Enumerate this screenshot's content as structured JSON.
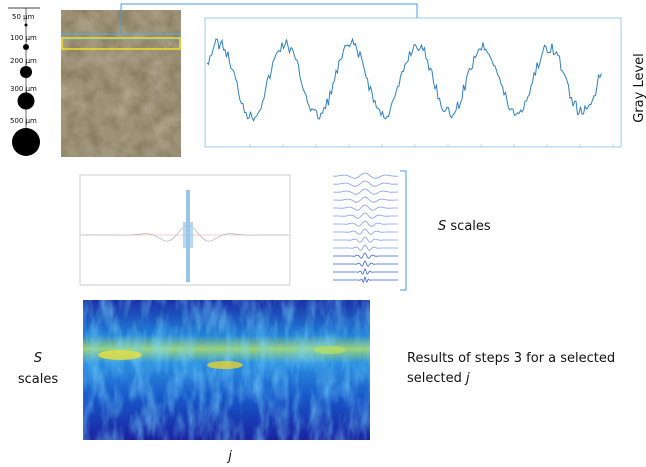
{
  "scale_bar": {
    "labels": [
      "50 µm",
      "100 µm",
      "200 µm",
      "300 µm",
      "500 µm"
    ]
  },
  "signal_plot": {
    "y_label": "Gray Level"
  },
  "wavelets": {
    "label": {
      "symbol": "S",
      "text": "scales"
    }
  },
  "heatmap": {
    "y_label": {
      "symbol": "S",
      "text": "scales"
    },
    "x_label": "j"
  },
  "caption": {
    "text": "Results of steps 3 for a selected",
    "symbol": "j"
  }
}
